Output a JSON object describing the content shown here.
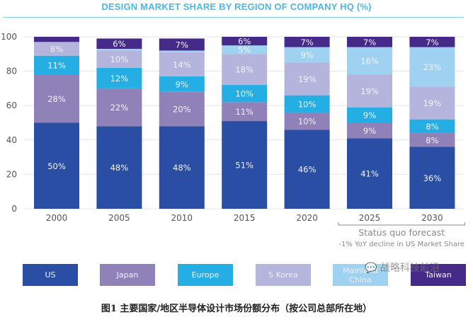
{
  "chart_data": {
    "type": "bar",
    "stacked": true,
    "title": "DESIGN MARKET SHARE BY REGION OF COMPANY HQ (%)",
    "xlabel": "",
    "ylabel": "",
    "ylim": [
      0,
      100
    ],
    "yticks": [
      0,
      20,
      40,
      60,
      80,
      100
    ],
    "grid": true,
    "legend_position": "bottom",
    "categories": [
      "2000",
      "2005",
      "2010",
      "2015",
      "2020",
      "2025",
      "2030"
    ],
    "series": [
      {
        "name": "US",
        "color": "#2a4ea3",
        "values": [
          50,
          48,
          48,
          51,
          46,
          41,
          36
        ],
        "labels": [
          "50%",
          "48%",
          "48%",
          "51%",
          "46%",
          "41%",
          "36%"
        ]
      },
      {
        "name": "Japan",
        "color": "#9081b8",
        "values": [
          28,
          22,
          20,
          11,
          10,
          9,
          8
        ],
        "labels": [
          "28%",
          "22%",
          "20%",
          "11%",
          "10%",
          "9%",
          "8%"
        ]
      },
      {
        "name": "Europe",
        "color": "#25aee3",
        "values": [
          11,
          12,
          9,
          10,
          10,
          9,
          8
        ],
        "labels": [
          "11%",
          "12%",
          "9%",
          "10%",
          "10%",
          "9%",
          "8%"
        ]
      },
      {
        "name": "S Korea",
        "color": "#b4b4dd",
        "values": [
          8,
          10,
          14,
          18,
          19,
          19,
          19
        ],
        "labels": [
          "8%",
          "10%",
          "14%",
          "18%",
          "19%",
          "19%",
          "19%"
        ]
      },
      {
        "name": "Mainland China",
        "color": "#9fd2f0",
        "values": [
          0,
          1,
          1,
          5,
          9,
          16,
          23
        ],
        "labels": [
          "",
          "",
          "",
          "5%",
          "9%",
          "16%",
          "23%"
        ]
      },
      {
        "name": "Taiwan",
        "color": "#452a8a",
        "values": [
          3,
          6,
          7,
          6,
          7,
          7,
          7
        ],
        "labels": [
          "",
          "6%",
          "7%",
          "6%",
          "7%",
          "7%",
          "7%"
        ]
      }
    ],
    "annotations": [
      {
        "text": "Status quo forecast",
        "applies_to": [
          "2025",
          "2030"
        ]
      },
      {
        "text": "-1% YoY decline in US Market Share",
        "applies_to": [
          "2025",
          "2030"
        ]
      }
    ]
  },
  "legend": [
    {
      "label": "US",
      "color": "#2a4ea3"
    },
    {
      "label": "Japan",
      "color": "#9081b8"
    },
    {
      "label": "Europe",
      "color": "#25aee3"
    },
    {
      "label": "S Korea",
      "color": "#b4b4dd"
    },
    {
      "label": "Mainland China",
      "color": "#9fd2f0"
    },
    {
      "label": "Taiwan",
      "color": "#452a8a"
    }
  ],
  "forecast": {
    "title": "Status quo forecast",
    "subtitle": "-1% YoY decline in US Market Share"
  },
  "caption": "图1 主要国家/地区半导体设计市场份额分布（按公司总部所在地）",
  "watermark": "战略科技前沿"
}
